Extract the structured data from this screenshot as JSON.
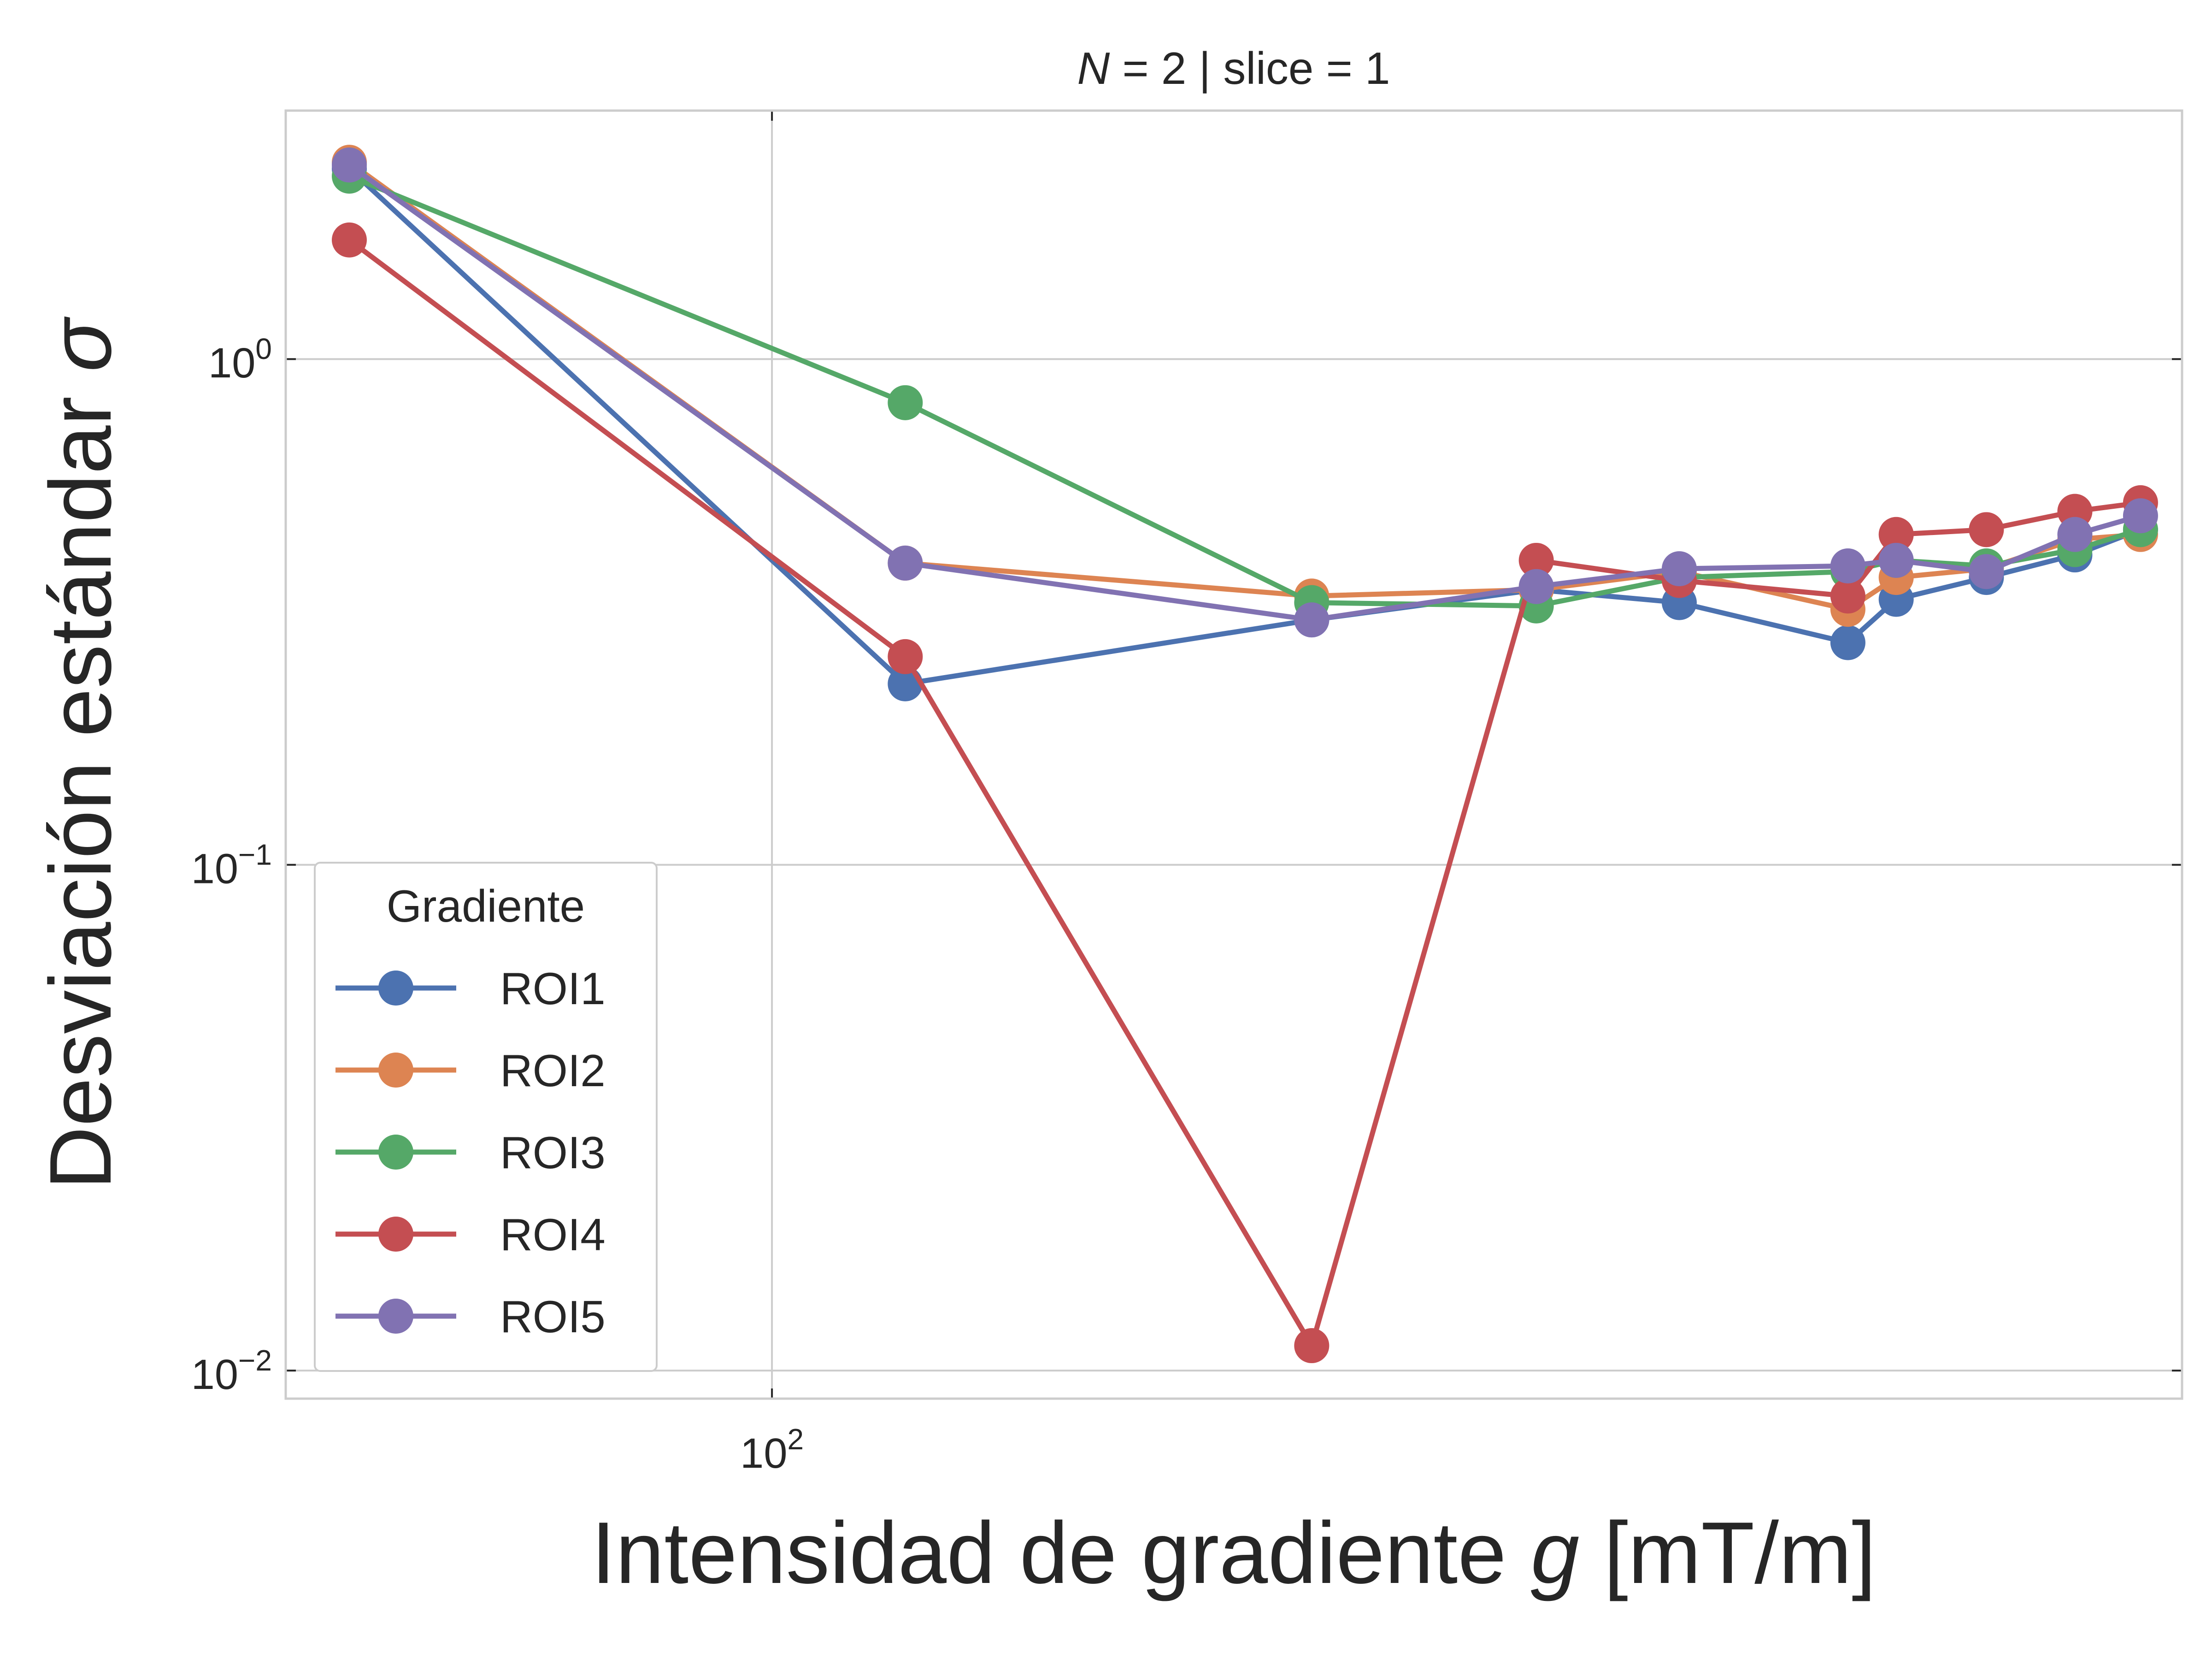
{
  "chart_data": {
    "type": "line",
    "title_prefix": "N",
    "title_rest": " = 2 | slice = 1",
    "xlabel_text": "Intensidad de gradiente ",
    "xlabel_var": "g",
    "xlabel_unit": " [mT/m]",
    "ylabel_text": "Desviación estándar ",
    "ylabel_var": "σ",
    "xscale": "log",
    "yscale": "log",
    "xlim": [
      62,
      400
    ],
    "ylim": [
      0.0088,
      3.1
    ],
    "x": [
      66,
      114,
      170,
      212,
      244,
      288,
      302,
      330,
      360,
      384
    ],
    "x_ticks": [
      {
        "value": 100,
        "base": "10",
        "exp": "2"
      }
    ],
    "y_ticks": [
      {
        "value": 1,
        "base": "10",
        "exp": "0"
      },
      {
        "value": 0.1,
        "base": "10",
        "exp": "−1"
      },
      {
        "value": 0.01,
        "base": "10",
        "exp": "−2"
      }
    ],
    "grid": true,
    "legend": {
      "title": "Gradiente",
      "placement": "lower-left"
    },
    "series": [
      {
        "name": "ROI1",
        "color": "#4c72b0",
        "values": [
          2.38,
          0.228,
          0.305,
          0.35,
          0.33,
          0.275,
          0.335,
          0.37,
          0.41,
          0.46
        ]
      },
      {
        "name": "ROI2",
        "color": "#dd8452",
        "values": [
          2.45,
          0.395,
          0.34,
          0.35,
          0.38,
          0.32,
          0.37,
          0.385,
          0.44,
          0.45
        ]
      },
      {
        "name": "ROI3",
        "color": "#55a868",
        "values": [
          2.3,
          0.82,
          0.33,
          0.325,
          0.37,
          0.38,
          0.4,
          0.39,
          0.42,
          0.46
        ]
      },
      {
        "name": "ROI4",
        "color": "#c44e52",
        "values": [
          1.72,
          0.258,
          0.0112,
          0.4,
          0.365,
          0.34,
          0.45,
          0.46,
          0.5,
          0.52
        ]
      },
      {
        "name": "ROI5",
        "color": "#8172b2",
        "values": [
          2.42,
          0.395,
          0.305,
          0.355,
          0.385,
          0.39,
          0.4,
          0.38,
          0.45,
          0.49
        ]
      }
    ]
  }
}
